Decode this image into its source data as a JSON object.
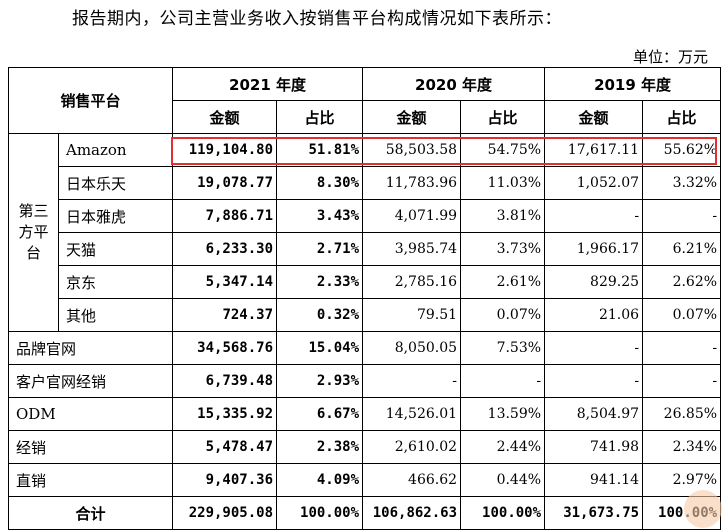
{
  "intro_text": "报告期内，公司主营业务收入按销售平台构成情况如下表所示：",
  "unit_label": "单位：万元",
  "header": {
    "platform": "销售平台",
    "year_2021": "2021 年度",
    "year_2020": "2020 年度",
    "year_2019": "2019 年度",
    "amount": "金额",
    "ratio": "占比"
  },
  "third_party_group": "第三方平台",
  "rows": [
    {
      "name": "Amazon",
      "a2021": "119,104.80",
      "r2021": "51.81%",
      "a2020": "58,503.58",
      "r2020": "54.75%",
      "a2019": "17,617.11",
      "r2019": "55.62%"
    },
    {
      "name": "日本乐天",
      "a2021": "19,078.77",
      "r2021": "8.30%",
      "a2020": "11,783.96",
      "r2020": "11.03%",
      "a2019": "1,052.07",
      "r2019": "3.32%"
    },
    {
      "name": "日本雅虎",
      "a2021": "7,886.71",
      "r2021": "3.43%",
      "a2020": "4,071.99",
      "r2020": "3.81%",
      "a2019": "-",
      "r2019": "-"
    },
    {
      "name": "天猫",
      "a2021": "6,233.30",
      "r2021": "2.71%",
      "a2020": "3,985.74",
      "r2020": "3.73%",
      "a2019": "1,966.17",
      "r2019": "6.21%"
    },
    {
      "name": "京东",
      "a2021": "5,347.14",
      "r2021": "2.33%",
      "a2020": "2,785.16",
      "r2020": "2.61%",
      "a2019": "829.25",
      "r2019": "2.62%"
    },
    {
      "name": "其他",
      "a2021": "724.37",
      "r2021": "0.32%",
      "a2020": "79.51",
      "r2020": "0.07%",
      "a2019": "21.06",
      "r2019": "0.07%"
    },
    {
      "name": "品牌官网",
      "a2021": "34,568.76",
      "r2021": "15.04%",
      "a2020": "8,050.05",
      "r2020": "7.53%",
      "a2019": "-",
      "r2019": "-"
    },
    {
      "name": "客户官网经销",
      "a2021": "6,739.48",
      "r2021": "2.93%",
      "a2020": "-",
      "r2020": "-",
      "a2019": "-",
      "r2019": "-"
    },
    {
      "name": "ODM",
      "a2021": "15,335.92",
      "r2021": "6.67%",
      "a2020": "14,526.01",
      "r2020": "13.59%",
      "a2019": "8,504.97",
      "r2019": "26.85%"
    },
    {
      "name": "经销",
      "a2021": "5,478.47",
      "r2021": "2.38%",
      "a2020": "2,610.02",
      "r2020": "2.44%",
      "a2019": "741.98",
      "r2019": "2.34%"
    },
    {
      "name": "直销",
      "a2021": "9,407.36",
      "r2021": "4.09%",
      "a2020": "466.62",
      "r2020": "0.44%",
      "a2019": "941.14",
      "r2019": "2.97%"
    }
  ],
  "total": {
    "name": "合计",
    "a2021": "229,905.08",
    "r2021": "100.00%",
    "a2020": "106,862.63",
    "r2020": "100.00%",
    "a2019": "31,673.75",
    "r2019": "100.00%"
  },
  "colors": {
    "highlight_border": "#e03030"
  }
}
